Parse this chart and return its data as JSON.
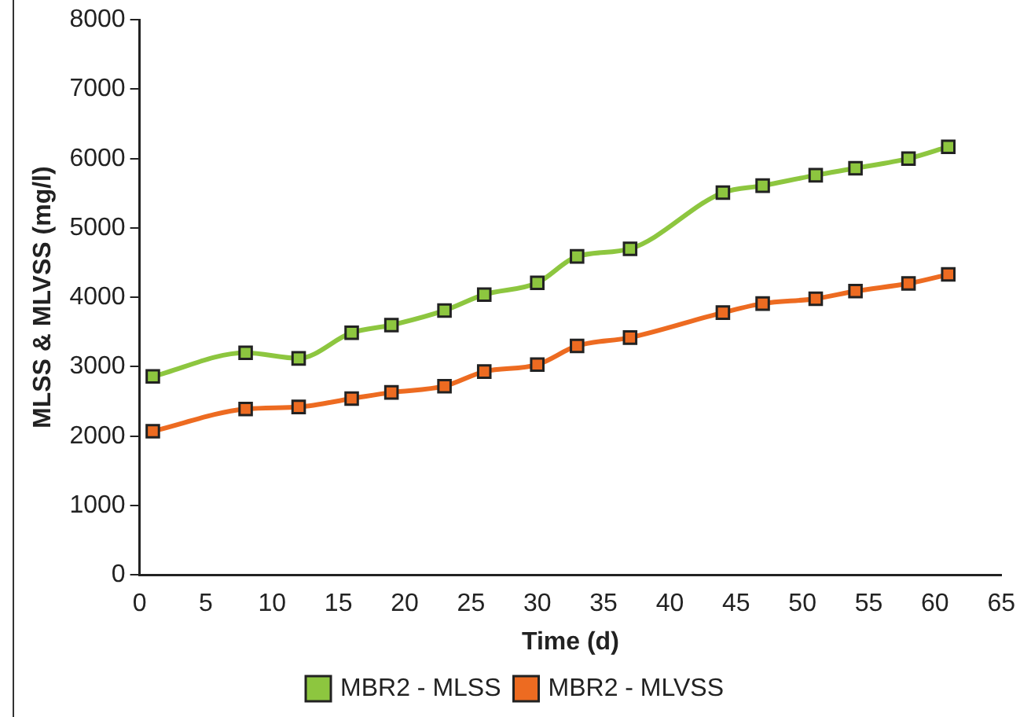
{
  "chart_data": {
    "type": "line",
    "xlabel": "Time (d)",
    "ylabel": "MLSS & MLVSS (mg/l)",
    "x": [
      1,
      8,
      12,
      16,
      19,
      23,
      26,
      30,
      33,
      37,
      44,
      47,
      51,
      54,
      58,
      61
    ],
    "series": [
      {
        "name": "MBR2 - MLSS",
        "color": "#8dc63f",
        "values": [
          2860,
          3200,
          3120,
          3490,
          3600,
          3810,
          4040,
          4210,
          4590,
          4700,
          5510,
          5610,
          5760,
          5860,
          6000,
          6170
        ]
      },
      {
        "name": "MBR2 - MLVSS",
        "color": "#ed6b21",
        "values": [
          2070,
          2390,
          2420,
          2540,
          2630,
          2720,
          2930,
          3030,
          3300,
          3420,
          3780,
          3910,
          3980,
          4090,
          4200,
          4330
        ]
      }
    ],
    "xlim": [
      0,
      65
    ],
    "xticks": [
      0,
      5,
      10,
      15,
      20,
      25,
      30,
      35,
      40,
      45,
      50,
      55,
      60,
      65
    ],
    "ylim": [
      0,
      8000
    ],
    "yticks": [
      0,
      1000,
      2000,
      3000,
      4000,
      5000,
      6000,
      7000,
      8000
    ],
    "grid": false,
    "legend": "bottom",
    "marker": "square",
    "line_style": "solid"
  }
}
